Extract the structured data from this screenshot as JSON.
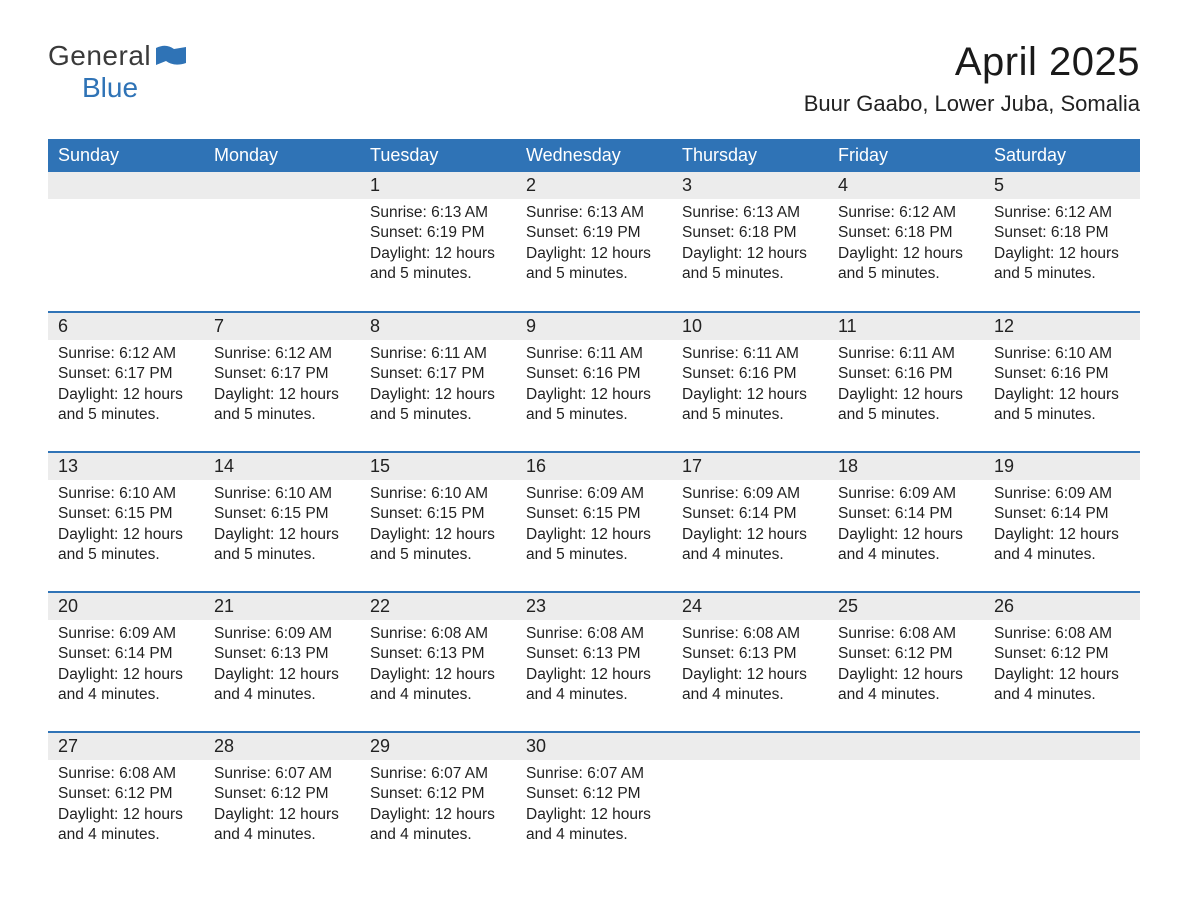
{
  "colors": {
    "header_bg": "#2f73b6",
    "header_text": "#ffffff",
    "daynum_bg": "#ececec",
    "week_sep": "#2f73b6",
    "page_bg": "#ffffff",
    "text": "#222222",
    "logo_blue": "#2f73b6",
    "logo_gray": "#3a3a3a"
  },
  "logo": {
    "text1": "General",
    "text2": "Blue"
  },
  "title": "April 2025",
  "subtitle": "Buur Gaabo, Lower Juba, Somalia",
  "day_headers": [
    "Sunday",
    "Monday",
    "Tuesday",
    "Wednesday",
    "Thursday",
    "Friday",
    "Saturday"
  ],
  "weeks": [
    [
      {
        "empty": true
      },
      {
        "empty": true
      },
      {
        "day": "1",
        "sunrise": "Sunrise: 6:13 AM",
        "sunset": "Sunset: 6:19 PM",
        "daylight": "Daylight: 12 hours and 5 minutes."
      },
      {
        "day": "2",
        "sunrise": "Sunrise: 6:13 AM",
        "sunset": "Sunset: 6:19 PM",
        "daylight": "Daylight: 12 hours and 5 minutes."
      },
      {
        "day": "3",
        "sunrise": "Sunrise: 6:13 AM",
        "sunset": "Sunset: 6:18 PM",
        "daylight": "Daylight: 12 hours and 5 minutes."
      },
      {
        "day": "4",
        "sunrise": "Sunrise: 6:12 AM",
        "sunset": "Sunset: 6:18 PM",
        "daylight": "Daylight: 12 hours and 5 minutes."
      },
      {
        "day": "5",
        "sunrise": "Sunrise: 6:12 AM",
        "sunset": "Sunset: 6:18 PM",
        "daylight": "Daylight: 12 hours and 5 minutes."
      }
    ],
    [
      {
        "day": "6",
        "sunrise": "Sunrise: 6:12 AM",
        "sunset": "Sunset: 6:17 PM",
        "daylight": "Daylight: 12 hours and 5 minutes."
      },
      {
        "day": "7",
        "sunrise": "Sunrise: 6:12 AM",
        "sunset": "Sunset: 6:17 PM",
        "daylight": "Daylight: 12 hours and 5 minutes."
      },
      {
        "day": "8",
        "sunrise": "Sunrise: 6:11 AM",
        "sunset": "Sunset: 6:17 PM",
        "daylight": "Daylight: 12 hours and 5 minutes."
      },
      {
        "day": "9",
        "sunrise": "Sunrise: 6:11 AM",
        "sunset": "Sunset: 6:16 PM",
        "daylight": "Daylight: 12 hours and 5 minutes."
      },
      {
        "day": "10",
        "sunrise": "Sunrise: 6:11 AM",
        "sunset": "Sunset: 6:16 PM",
        "daylight": "Daylight: 12 hours and 5 minutes."
      },
      {
        "day": "11",
        "sunrise": "Sunrise: 6:11 AM",
        "sunset": "Sunset: 6:16 PM",
        "daylight": "Daylight: 12 hours and 5 minutes."
      },
      {
        "day": "12",
        "sunrise": "Sunrise: 6:10 AM",
        "sunset": "Sunset: 6:16 PM",
        "daylight": "Daylight: 12 hours and 5 minutes."
      }
    ],
    [
      {
        "day": "13",
        "sunrise": "Sunrise: 6:10 AM",
        "sunset": "Sunset: 6:15 PM",
        "daylight": "Daylight: 12 hours and 5 minutes."
      },
      {
        "day": "14",
        "sunrise": "Sunrise: 6:10 AM",
        "sunset": "Sunset: 6:15 PM",
        "daylight": "Daylight: 12 hours and 5 minutes."
      },
      {
        "day": "15",
        "sunrise": "Sunrise: 6:10 AM",
        "sunset": "Sunset: 6:15 PM",
        "daylight": "Daylight: 12 hours and 5 minutes."
      },
      {
        "day": "16",
        "sunrise": "Sunrise: 6:09 AM",
        "sunset": "Sunset: 6:15 PM",
        "daylight": "Daylight: 12 hours and 5 minutes."
      },
      {
        "day": "17",
        "sunrise": "Sunrise: 6:09 AM",
        "sunset": "Sunset: 6:14 PM",
        "daylight": "Daylight: 12 hours and 4 minutes."
      },
      {
        "day": "18",
        "sunrise": "Sunrise: 6:09 AM",
        "sunset": "Sunset: 6:14 PM",
        "daylight": "Daylight: 12 hours and 4 minutes."
      },
      {
        "day": "19",
        "sunrise": "Sunrise: 6:09 AM",
        "sunset": "Sunset: 6:14 PM",
        "daylight": "Daylight: 12 hours and 4 minutes."
      }
    ],
    [
      {
        "day": "20",
        "sunrise": "Sunrise: 6:09 AM",
        "sunset": "Sunset: 6:14 PM",
        "daylight": "Daylight: 12 hours and 4 minutes."
      },
      {
        "day": "21",
        "sunrise": "Sunrise: 6:09 AM",
        "sunset": "Sunset: 6:13 PM",
        "daylight": "Daylight: 12 hours and 4 minutes."
      },
      {
        "day": "22",
        "sunrise": "Sunrise: 6:08 AM",
        "sunset": "Sunset: 6:13 PM",
        "daylight": "Daylight: 12 hours and 4 minutes."
      },
      {
        "day": "23",
        "sunrise": "Sunrise: 6:08 AM",
        "sunset": "Sunset: 6:13 PM",
        "daylight": "Daylight: 12 hours and 4 minutes."
      },
      {
        "day": "24",
        "sunrise": "Sunrise: 6:08 AM",
        "sunset": "Sunset: 6:13 PM",
        "daylight": "Daylight: 12 hours and 4 minutes."
      },
      {
        "day": "25",
        "sunrise": "Sunrise: 6:08 AM",
        "sunset": "Sunset: 6:12 PM",
        "daylight": "Daylight: 12 hours and 4 minutes."
      },
      {
        "day": "26",
        "sunrise": "Sunrise: 6:08 AM",
        "sunset": "Sunset: 6:12 PM",
        "daylight": "Daylight: 12 hours and 4 minutes."
      }
    ],
    [
      {
        "day": "27",
        "sunrise": "Sunrise: 6:08 AM",
        "sunset": "Sunset: 6:12 PM",
        "daylight": "Daylight: 12 hours and 4 minutes."
      },
      {
        "day": "28",
        "sunrise": "Sunrise: 6:07 AM",
        "sunset": "Sunset: 6:12 PM",
        "daylight": "Daylight: 12 hours and 4 minutes."
      },
      {
        "day": "29",
        "sunrise": "Sunrise: 6:07 AM",
        "sunset": "Sunset: 6:12 PM",
        "daylight": "Daylight: 12 hours and 4 minutes."
      },
      {
        "day": "30",
        "sunrise": "Sunrise: 6:07 AM",
        "sunset": "Sunset: 6:12 PM",
        "daylight": "Daylight: 12 hours and 4 minutes."
      },
      {
        "empty": true
      },
      {
        "empty": true
      },
      {
        "empty": true
      }
    ]
  ]
}
